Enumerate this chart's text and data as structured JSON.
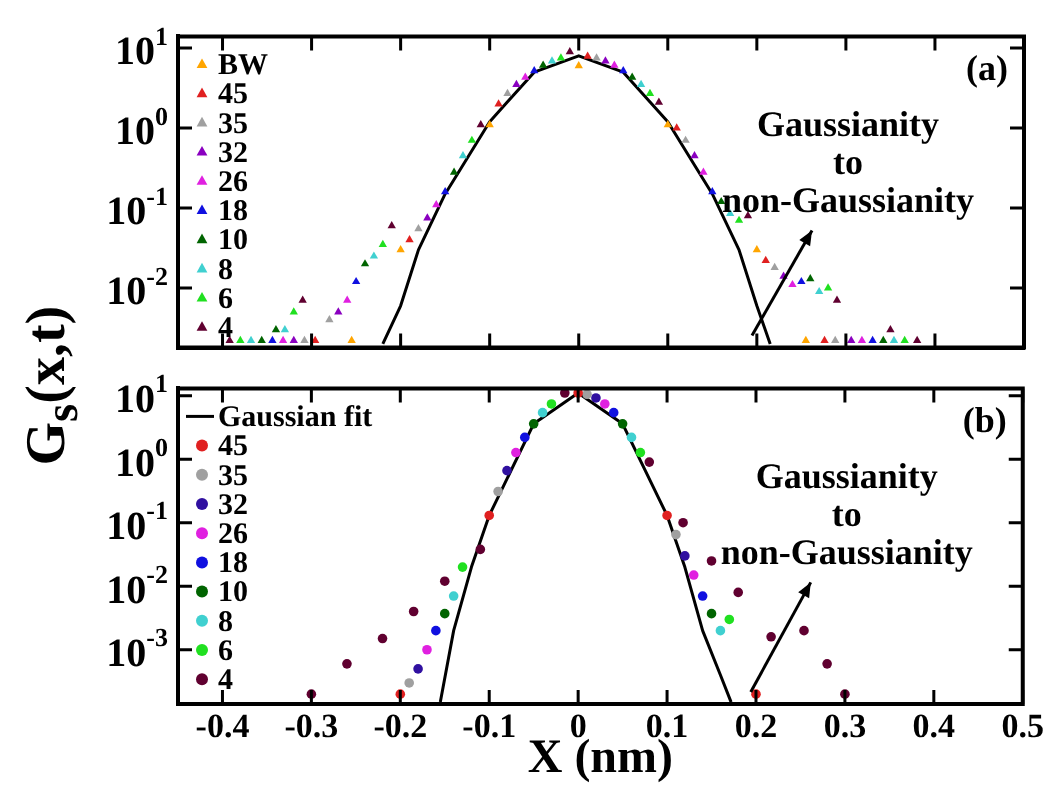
{
  "chart_data": [
    {
      "type": "scatter",
      "log": "y",
      "marker": "triangle",
      "legend": "left",
      "tick_labels": "y",
      "xlim": [
        -0.45,
        0.5
      ],
      "xticks": [
        -0.4,
        -0.3,
        -0.2,
        -0.1,
        0,
        0.1,
        0.2,
        0.3,
        0.4,
        0.5
      ],
      "ylim": [
        0.0018,
        14
      ],
      "yticks": [
        {
          "value": 10,
          "label": "10$^{1}$"
        },
        {
          "value": 1,
          "label": "10$^{0}$"
        },
        {
          "value": 0.1,
          "label": "10$^{-1}$"
        },
        {
          "value": 0.01,
          "label": "10$^{-2}$"
        }
      ],
      "annotations": [
        "(a)",
        "Gaussianity to non-Gaussianity"
      ],
      "series": [
        {
          "type": "line",
          "marker": "none",
          "color": "#000000",
          "x": [
            -0.22,
            -0.2,
            -0.18,
            -0.15,
            -0.1,
            -0.05,
            0,
            0.05,
            0.1,
            0.15,
            0.18,
            0.2,
            0.215
          ],
          "values": [
            0.002,
            0.006,
            0.03,
            0.15,
            1.2,
            5,
            8,
            5,
            1.2,
            0.15,
            0.03,
            0.006,
            0.002
          ]
        },
        {
          "name": "BW",
          "color": "#ffa500",
          "x": [
            -0.255,
            -0.2,
            -0.1,
            0,
            0.1,
            0.2,
            0.255
          ],
          "values": [
            0.0022,
            0.03,
            1.1,
            6,
            1.1,
            0.03,
            0.0022
          ]
        },
        {
          "name": "45",
          "color": "#e02020",
          "x": [
            -0.296,
            -0.19,
            -0.09,
            0.01,
            0.11,
            0.21,
            0.276
          ],
          "values": [
            0.0022,
            0.04,
            2,
            7.9,
            1,
            0.022,
            0.0022
          ]
        },
        {
          "name": "35",
          "color": "#a0a0a0",
          "x": [
            -0.308,
            -0.28,
            -0.18,
            -0.08,
            0.02,
            0.12,
            0.22,
            0.288
          ],
          "values": [
            0.0022,
            0.004,
            0.055,
            2.7,
            7.5,
            0.7,
            0.018,
            0.0022
          ]
        },
        {
          "name": "32",
          "color": "#8a00c0",
          "x": [
            -0.32,
            -0.27,
            -0.17,
            -0.07,
            0.03,
            0.13,
            0.23,
            0.306
          ],
          "values": [
            0.0022,
            0.005,
            0.075,
            3.5,
            6.9,
            0.45,
            0.014,
            0.0022
          ]
        },
        {
          "name": "26",
          "color": "#e020e0",
          "x": [
            -0.332,
            -0.26,
            -0.16,
            -0.06,
            0.04,
            0.14,
            0.24,
            0.318
          ],
          "values": [
            0.0022,
            0.007,
            0.11,
            4.3,
            6.1,
            0.28,
            0.011,
            0.0022
          ]
        },
        {
          "name": "18",
          "color": "#1010e0",
          "x": [
            -0.344,
            -0.25,
            -0.15,
            -0.05,
            0.05,
            0.15,
            0.25,
            0.33
          ],
          "values": [
            0.0022,
            0.012,
            0.16,
            5.2,
            5.2,
            0.16,
            0.012,
            0.0022
          ]
        },
        {
          "name": "10",
          "color": "#006400",
          "x": [
            -0.356,
            -0.34,
            -0.24,
            -0.14,
            -0.04,
            0.06,
            0.16,
            0.26,
            0.342
          ],
          "values": [
            0.0022,
            0.003,
            0.02,
            0.28,
            6.1,
            4.3,
            0.12,
            0.013,
            0.0022
          ]
        },
        {
          "name": "8",
          "color": "#40d0d0",
          "x": [
            -0.368,
            -0.33,
            -0.23,
            -0.13,
            -0.03,
            0.07,
            0.17,
            0.27,
            0.354
          ],
          "values": [
            0.0022,
            0.003,
            0.025,
            0.45,
            6.9,
            3.5,
            0.085,
            0.009,
            0.0022
          ]
        },
        {
          "name": "6",
          "color": "#20e020",
          "x": [
            -0.38,
            -0.32,
            -0.22,
            -0.12,
            -0.02,
            0.08,
            0.18,
            0.28,
            0.366
          ],
          "values": [
            0.0022,
            0.005,
            0.035,
            0.7,
            7.5,
            2.7,
            0.07,
            0.01,
            0.0022
          ]
        },
        {
          "name": "4",
          "color": "#600030",
          "x": [
            -0.392,
            -0.31,
            -0.21,
            -0.11,
            -0.01,
            0.09,
            0.19,
            0.29,
            0.35,
            0.38
          ],
          "values": [
            0.0022,
            0.007,
            0.06,
            1.1,
            9,
            2.1,
            0.08,
            0.007,
            0.003,
            0.0022
          ]
        }
      ]
    },
    {
      "type": "scatter",
      "log": "y",
      "marker": "circle",
      "legend": "left",
      "xlabel": "X (nm)",
      "ylabel": "G$_{s}$(x,t)",
      "xlim": [
        -0.45,
        0.5
      ],
      "xticks": [
        -0.4,
        -0.3,
        -0.2,
        -0.1,
        0,
        0.1,
        0.2,
        0.3,
        0.4,
        0.5
      ],
      "ylim": [
        0.00014,
        13
      ],
      "yticks": [
        {
          "value": 10,
          "label": "10$^{1}$"
        },
        {
          "value": 1,
          "label": "10$^{0}$"
        },
        {
          "value": 0.1,
          "label": "10$^{-1}$"
        },
        {
          "value": 0.01,
          "label": "10$^{-2}$"
        },
        {
          "value": 0.001,
          "label": "10$^{-3}$"
        }
      ],
      "annotations": [
        "(b)",
        "Gaussianity to non-Gaussianity"
      ],
      "series": [
        {
          "type": "line",
          "marker": "none",
          "name": "Gaussian fit",
          "color": "#000000",
          "x": [
            -0.155,
            -0.14,
            -0.12,
            -0.1,
            -0.05,
            0,
            0.05,
            0.1,
            0.12,
            0.14,
            0.16,
            0.172
          ],
          "values": [
            0.00015,
            0.002,
            0.02,
            0.13,
            3.6,
            11,
            3.6,
            0.13,
            0.02,
            0.002,
            0.0004,
            0.00015
          ]
        },
        {
          "name": "45",
          "color": "#e02020",
          "x": [
            -0.2,
            -0.1,
            0,
            0.1,
            0.2
          ],
          "values": [
            0.0002,
            0.13,
            11,
            0.13,
            0.0002
          ]
        },
        {
          "name": "35",
          "color": "#a0a0a0",
          "x": [
            -0.19,
            -0.09,
            0.01,
            0.11
          ],
          "values": [
            0.0003,
            0.31,
            10.5,
            0.065
          ]
        },
        {
          "name": "32",
          "color": "#3010a0",
          "x": [
            -0.18,
            -0.08,
            0.02,
            0.12
          ],
          "values": [
            0.0005,
            0.66,
            9.2,
            0.03
          ]
        },
        {
          "name": "26",
          "color": "#e020e0",
          "x": [
            -0.17,
            -0.07,
            0.03,
            0.13
          ],
          "values": [
            0.001,
            1.27,
            7.4,
            0.015
          ]
        },
        {
          "name": "18",
          "color": "#1010e0",
          "x": [
            -0.16,
            -0.06,
            0.04,
            0.14
          ],
          "values": [
            0.002,
            2.2,
            5.4,
            0.007
          ]
        },
        {
          "name": "10",
          "color": "#006400",
          "x": [
            -0.15,
            -0.05,
            0.05,
            0.15
          ],
          "values": [
            0.0037,
            3.6,
            3.6,
            0.0037
          ]
        },
        {
          "name": "8",
          "color": "#40d0d0",
          "x": [
            -0.14,
            -0.04,
            0.06,
            0.16
          ],
          "values": [
            0.007,
            5.4,
            2.2,
            0.002
          ]
        },
        {
          "name": "6",
          "color": "#20e020",
          "x": [
            -0.13,
            -0.03,
            0.07,
            0.17
          ],
          "values": [
            0.02,
            7.4,
            1.27,
            0.003
          ]
        },
        {
          "name": "4",
          "color": "#600030",
          "x": [
            -0.3,
            -0.26,
            -0.22,
            -0.185,
            -0.15,
            -0.11,
            -0.015,
            0.08,
            0.118,
            0.15,
            0.18,
            0.217,
            0.254,
            0.28,
            0.3
          ],
          "values": [
            0.0002,
            0.0006,
            0.0015,
            0.004,
            0.012,
            0.038,
            11,
            0.9,
            0.1,
            0.025,
            0.008,
            0.0016,
            0.002,
            0.0006,
            0.0002
          ]
        }
      ]
    }
  ]
}
